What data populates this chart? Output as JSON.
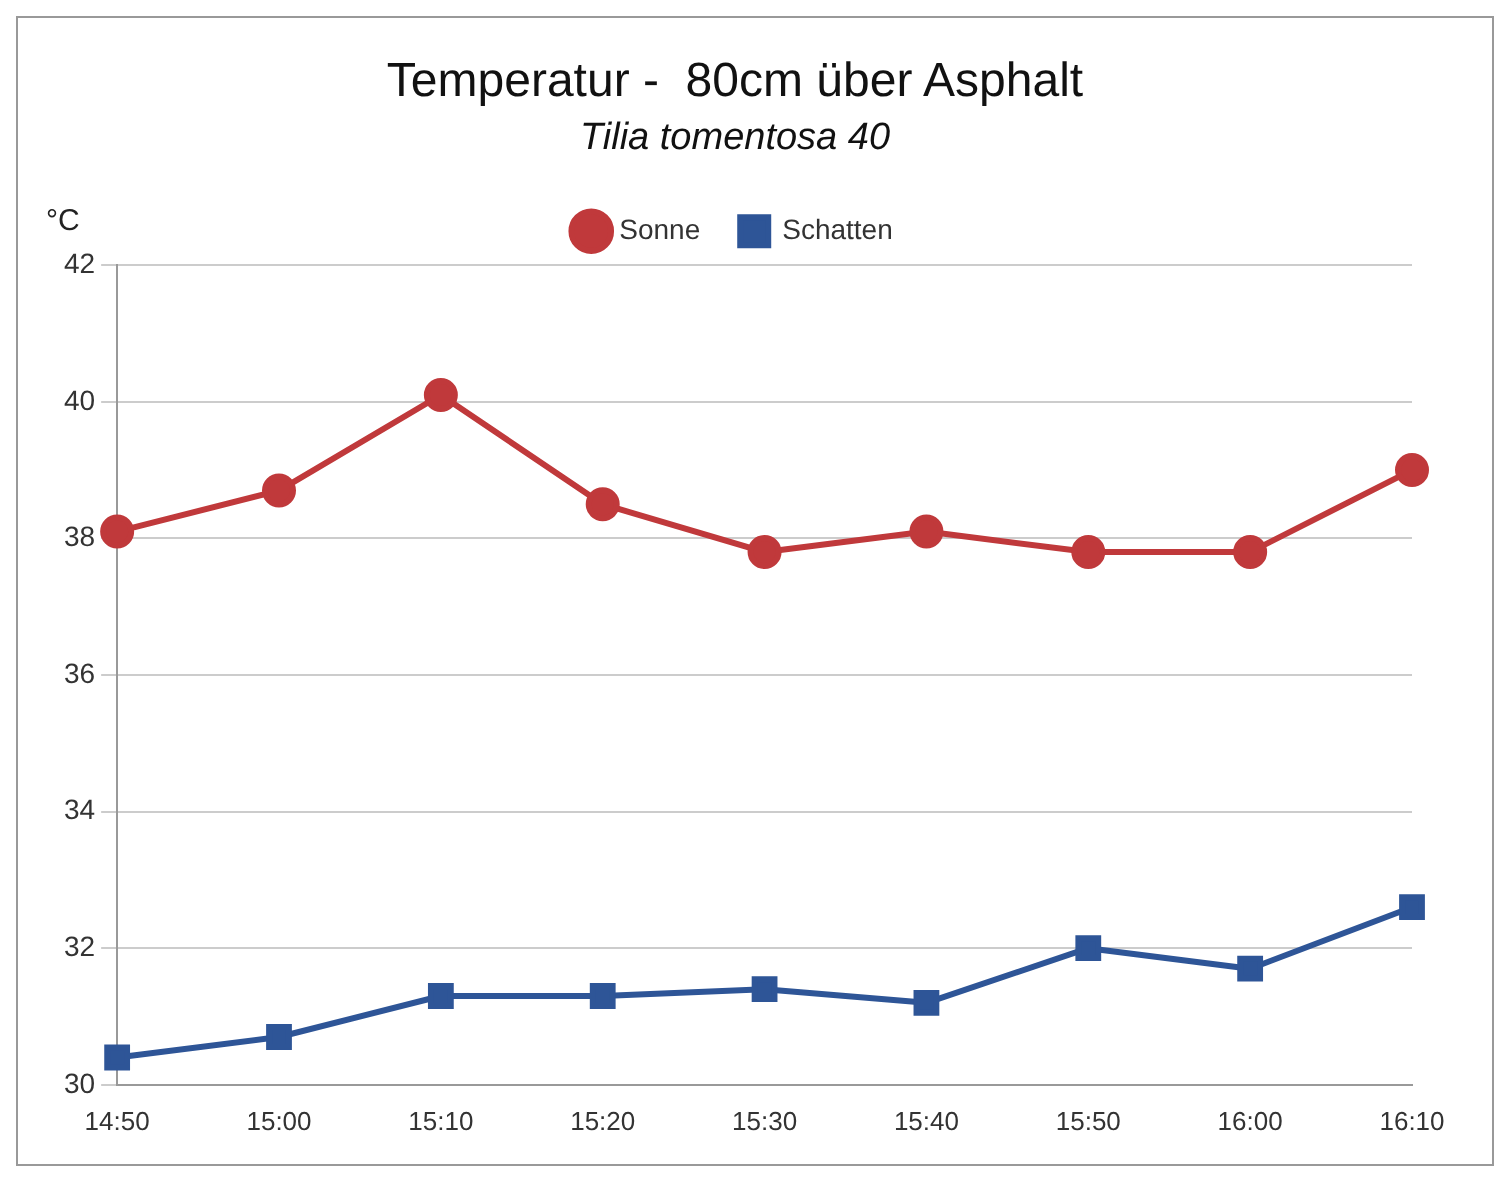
{
  "chart_data": {
    "type": "line",
    "title": "Temperatur -  80cm über Asphalt",
    "subtitle": "Tilia tomentosa 40",
    "ylabel": "°C",
    "categories": [
      "14:50",
      "15:00",
      "15:10",
      "15:20",
      "15:30",
      "15:40",
      "15:50",
      "16:00",
      "16:10"
    ],
    "series": [
      {
        "name": "Sonne",
        "color": "#c0393b",
        "marker": "circle",
        "values": [
          38.1,
          38.7,
          40.1,
          38.5,
          37.8,
          38.1,
          37.8,
          37.8,
          39.0
        ]
      },
      {
        "name": "Schatten",
        "color": "#2e5597",
        "marker": "square",
        "values": [
          30.4,
          30.7,
          31.3,
          31.3,
          31.4,
          31.2,
          32.0,
          31.7,
          32.6
        ]
      }
    ],
    "ylim": [
      30,
      42
    ],
    "yticks": [
      30,
      32,
      34,
      36,
      38,
      40,
      42
    ],
    "grid": "y",
    "legend": "top",
    "line_style": "solid"
  }
}
